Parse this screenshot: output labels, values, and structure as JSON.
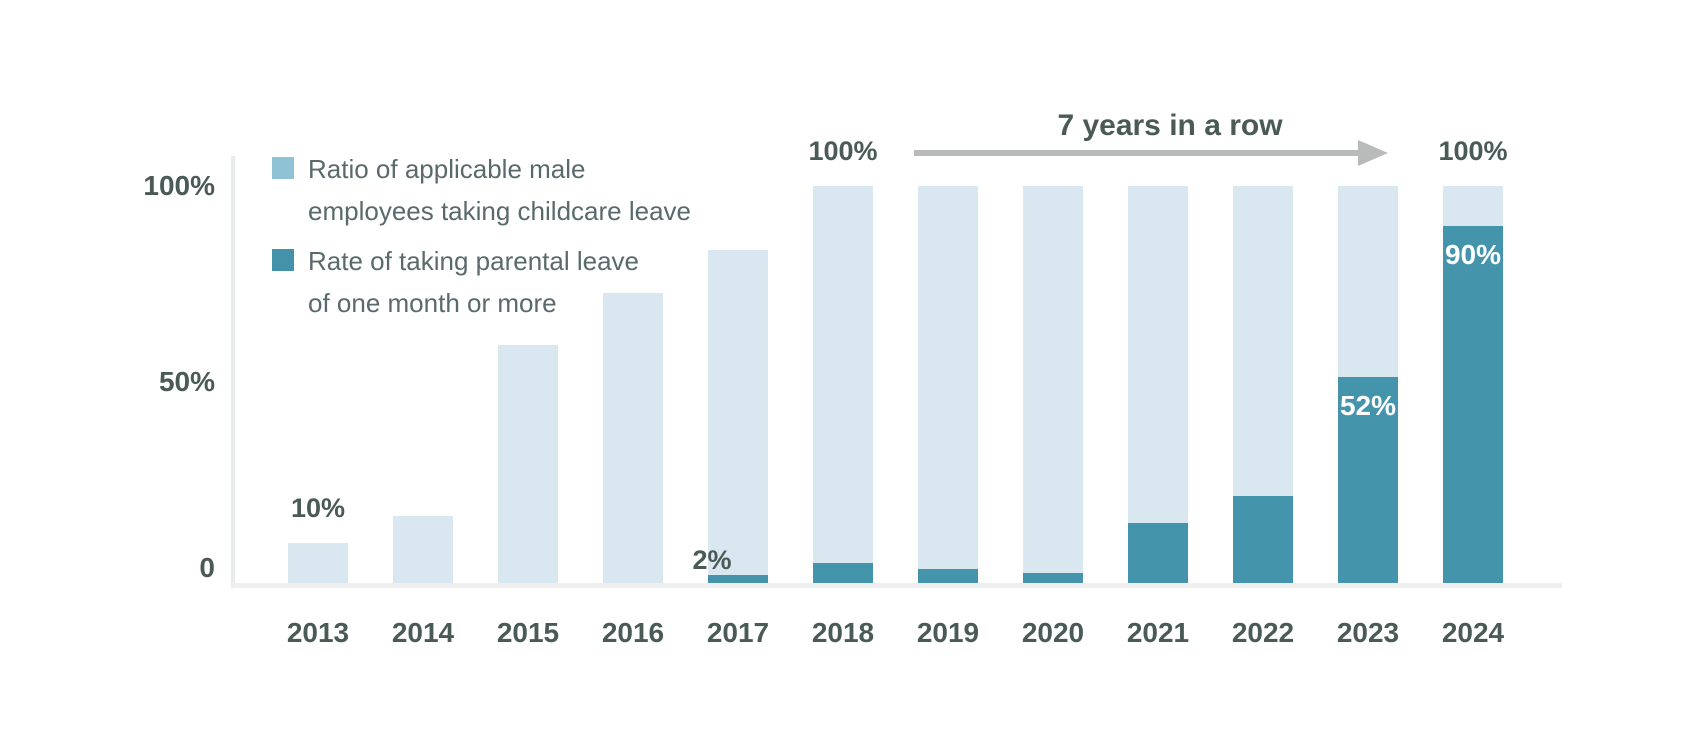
{
  "chart_data": {
    "type": "bar",
    "title": "",
    "categories": [
      "2013",
      "2014",
      "2015",
      "2016",
      "2017",
      "2018",
      "2019",
      "2020",
      "2021",
      "2022",
      "2023",
      "2024"
    ],
    "series": [
      {
        "name": "Ratio of applicable male employees taking childcare leave",
        "color": "#d9e8f0",
        "values": [
          10,
          17,
          60,
          73,
          84,
          100,
          100,
          100,
          100,
          100,
          100,
          100
        ]
      },
      {
        "name": "Rate of taking parental leave of one month or more",
        "color": "#4494ab",
        "values": [
          0,
          0,
          0,
          0,
          2,
          5,
          3.5,
          2.5,
          15,
          22,
          52,
          90
        ]
      }
    ],
    "yticks": [
      "100%",
      "50%",
      "0"
    ],
    "ylim": [
      0,
      100
    ],
    "grid": false,
    "legend_position": "top-left"
  },
  "legend": {
    "items": [
      {
        "line1": "Ratio of applicable male",
        "line2": "employees taking childcare leave",
        "swatch_color": "#90c2d6"
      },
      {
        "line1": "Rate of taking parental leave",
        "line2": "of one month or more",
        "swatch_color": "#4392aa"
      }
    ]
  },
  "annotations": {
    "streak_label": "7 years in a row",
    "value_labels": [
      {
        "category": "2013",
        "text": "10%",
        "placement": "above_light"
      },
      {
        "category": "2017",
        "text": "2%",
        "placement": "above_dark"
      },
      {
        "category": "2018",
        "text": "100%",
        "placement": "above_light"
      },
      {
        "category": "2023",
        "text": "52%",
        "placement": "inside_dark"
      },
      {
        "category": "2024",
        "text": "90%",
        "placement": "inside_dark"
      },
      {
        "category": "2024",
        "text": "100%",
        "placement": "above_light"
      }
    ]
  },
  "colors": {
    "background": "#ffffff",
    "bar_light": "#d9e8f0",
    "bar_dark": "#4494ab",
    "legend_swatch_light": "#90c2d6",
    "legend_swatch_dark": "#4392aa",
    "axis_line": "#e9ecec",
    "baseline": "#efefef",
    "arrow": "#b9bbbb",
    "text_dark": "#4a5a56",
    "legend_text": "#5a6a6c",
    "label_white": "#ffffff"
  }
}
